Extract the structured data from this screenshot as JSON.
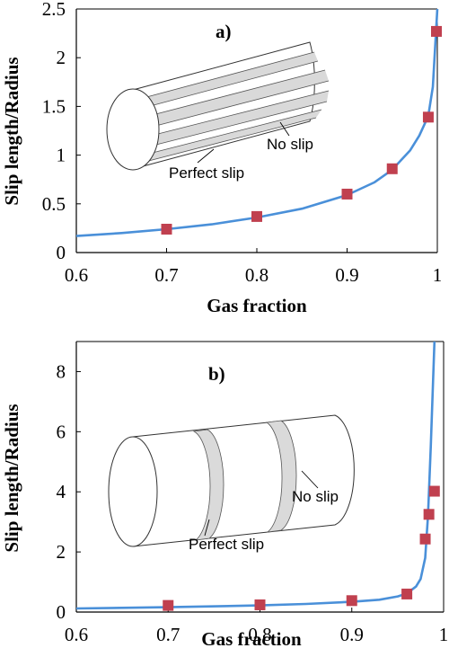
{
  "chart_data": [
    {
      "type": "line",
      "panel_label": "a)",
      "xlabel": "Gas fraction",
      "ylabel": "Slip length/Radius",
      "xlim": [
        0.6,
        1.0
      ],
      "ylim": [
        0,
        2.5
      ],
      "x_ticks": [
        "0.6",
        "0.7",
        "0.8",
        "0.9",
        "1"
      ],
      "y_ticks": [
        "0",
        "0.5",
        "1",
        "1.5",
        "2",
        "2.5"
      ],
      "grid": false,
      "line_color": "#4a90d9",
      "marker_color": "#c0404f",
      "series": [
        {
          "kind": "curve",
          "x": [
            0.6,
            0.65,
            0.7,
            0.75,
            0.8,
            0.85,
            0.9,
            0.93,
            0.95,
            0.97,
            0.98,
            0.99,
            0.995,
            1.0
          ],
          "y": [
            0.17,
            0.2,
            0.24,
            0.29,
            0.36,
            0.45,
            0.59,
            0.72,
            0.85,
            1.05,
            1.2,
            1.4,
            1.7,
            2.5
          ]
        },
        {
          "kind": "markers",
          "x": [
            0.7,
            0.8,
            0.9,
            0.95,
            0.99,
            0.999
          ],
          "y": [
            0.24,
            0.37,
            0.6,
            0.86,
            1.39,
            2.27
          ]
        }
      ],
      "inset": {
        "label_no_slip": "No slip",
        "label_perfect_slip": "Perfect slip",
        "pattern": "longitudinal-stripes"
      }
    },
    {
      "type": "line",
      "panel_label": "b)",
      "xlabel": "Gas fraction",
      "ylabel": "Slip length/Radius",
      "xlim": [
        0.6,
        1.0
      ],
      "ylim": [
        0,
        9
      ],
      "x_ticks": [
        "0.6",
        "0.7",
        "0.8",
        "0.9",
        "1"
      ],
      "y_ticks": [
        "0",
        "2",
        "4",
        "6",
        "8"
      ],
      "grid": false,
      "line_color": "#4a90d9",
      "marker_color": "#c0404f",
      "series": [
        {
          "kind": "curve",
          "x": [
            0.6,
            0.7,
            0.8,
            0.85,
            0.9,
            0.93,
            0.95,
            0.96,
            0.97,
            0.975,
            0.98,
            0.983,
            0.986,
            0.99
          ],
          "y": [
            0.12,
            0.16,
            0.22,
            0.27,
            0.34,
            0.41,
            0.52,
            0.62,
            0.85,
            1.1,
            1.8,
            3.2,
            5.5,
            9.0
          ]
        },
        {
          "kind": "markers",
          "x": [
            0.7,
            0.8,
            0.9,
            0.96,
            0.98,
            0.984,
            0.99
          ],
          "y": [
            0.22,
            0.24,
            0.38,
            0.6,
            2.43,
            3.25,
            4.02
          ]
        }
      ],
      "inset": {
        "label_no_slip": "No slip",
        "label_perfect_slip": "Perfect slip",
        "pattern": "transverse-rings"
      }
    }
  ]
}
